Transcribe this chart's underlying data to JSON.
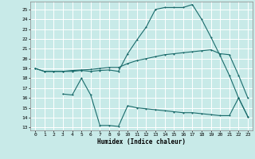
{
  "xlabel": "Humidex (Indice chaleur)",
  "bg_color": "#c8eae8",
  "grid_color": "#ffffff",
  "line_color": "#1a6b6b",
  "x_ticks": [
    0,
    1,
    2,
    3,
    4,
    5,
    6,
    7,
    8,
    9,
    10,
    11,
    12,
    13,
    14,
    15,
    16,
    17,
    18,
    19,
    20,
    21,
    22,
    23
  ],
  "y_ticks": [
    13,
    14,
    15,
    16,
    17,
    18,
    19,
    20,
    21,
    22,
    23,
    24,
    25
  ],
  "ylim": [
    12.7,
    25.8
  ],
  "xlim": [
    -0.5,
    23.5
  ],
  "line1_x": [
    0,
    1,
    2,
    3,
    4,
    5,
    6,
    7,
    8,
    9,
    10,
    11,
    12,
    13,
    14,
    15,
    16,
    17,
    18,
    19,
    20,
    21,
    22,
    23
  ],
  "line1_y": [
    19.0,
    18.7,
    18.7,
    18.7,
    18.7,
    18.8,
    18.7,
    18.8,
    18.85,
    18.7,
    20.5,
    21.9,
    23.2,
    25.0,
    25.2,
    25.2,
    25.2,
    25.5,
    24.0,
    22.2,
    20.3,
    18.3,
    16.0,
    14.1
  ],
  "line2_x": [
    0,
    1,
    2,
    3,
    4,
    5,
    6,
    7,
    8,
    9,
    10,
    11,
    12,
    13,
    14,
    15,
    16,
    17,
    18,
    19,
    20,
    21,
    22,
    23
  ],
  "line2_y": [
    19.0,
    18.7,
    18.7,
    18.7,
    18.8,
    18.85,
    18.9,
    19.0,
    19.1,
    19.1,
    19.5,
    19.8,
    20.0,
    20.2,
    20.4,
    20.5,
    20.6,
    20.7,
    20.8,
    20.9,
    20.5,
    20.4,
    18.3,
    16.0
  ],
  "line3_x": [
    3,
    4,
    5,
    6,
    7,
    8,
    9,
    10,
    11,
    12,
    13,
    14,
    15,
    16,
    17,
    18,
    19,
    20,
    21,
    22,
    23
  ],
  "line3_y": [
    16.4,
    16.3,
    18.0,
    16.3,
    13.2,
    13.2,
    13.1,
    15.2,
    15.0,
    14.9,
    14.8,
    14.7,
    14.6,
    14.5,
    14.5,
    14.4,
    14.3,
    14.2,
    14.2,
    16.0,
    14.1
  ],
  "font_family": "monospace"
}
